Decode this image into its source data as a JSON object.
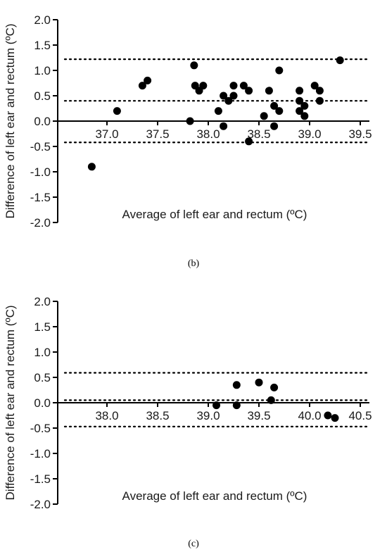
{
  "chart_data": [
    {
      "type": "scatter",
      "panel_label": "(b)",
      "xlabel": "Average of left ear and rectum (ºC)",
      "ylabel": "Difference of left ear and rectum (ºC)",
      "xlim": [
        36.5,
        39.5
      ],
      "ylim": [
        -2.0,
        2.0
      ],
      "x_ticks": [
        "37.0",
        "37.5",
        "38.0",
        "38.5",
        "39.0",
        "39.5"
      ],
      "y_ticks": [
        "2.0",
        "1.5",
        "1.0",
        "0.5",
        "0.0",
        "-0.5",
        "-1.0",
        "-1.5",
        "-2.0"
      ],
      "reference_lines": {
        "upper_loa": 1.22,
        "mean_bias": 0.4,
        "lower_loa": -0.42
      },
      "points": [
        {
          "x": 36.85,
          "y": -0.9
        },
        {
          "x": 37.1,
          "y": 0.2
        },
        {
          "x": 37.35,
          "y": 0.7
        },
        {
          "x": 37.4,
          "y": 0.8
        },
        {
          "x": 37.82,
          "y": 0.0
        },
        {
          "x": 37.86,
          "y": 1.1
        },
        {
          "x": 37.87,
          "y": 0.7
        },
        {
          "x": 37.91,
          "y": 0.6
        },
        {
          "x": 37.95,
          "y": 0.7
        },
        {
          "x": 38.1,
          "y": 0.2
        },
        {
          "x": 38.15,
          "y": 0.5
        },
        {
          "x": 38.15,
          "y": -0.1
        },
        {
          "x": 38.2,
          "y": 0.4
        },
        {
          "x": 38.25,
          "y": 0.7
        },
        {
          "x": 38.25,
          "y": 0.5
        },
        {
          "x": 38.35,
          "y": 0.7
        },
        {
          "x": 38.4,
          "y": 0.6
        },
        {
          "x": 38.4,
          "y": -0.4
        },
        {
          "x": 38.55,
          "y": 0.1
        },
        {
          "x": 38.6,
          "y": 0.6
        },
        {
          "x": 38.65,
          "y": 0.3
        },
        {
          "x": 38.65,
          "y": -0.1
        },
        {
          "x": 38.7,
          "y": 1.0
        },
        {
          "x": 38.7,
          "y": 0.2
        },
        {
          "x": 38.9,
          "y": 0.6
        },
        {
          "x": 38.9,
          "y": 0.4
        },
        {
          "x": 38.9,
          "y": 0.2
        },
        {
          "x": 38.95,
          "y": 0.3
        },
        {
          "x": 38.95,
          "y": 0.1
        },
        {
          "x": 39.05,
          "y": 0.7
        },
        {
          "x": 39.1,
          "y": 0.6
        },
        {
          "x": 39.1,
          "y": 0.4
        },
        {
          "x": 39.3,
          "y": 1.2
        }
      ]
    },
    {
      "type": "scatter",
      "panel_label": "(c)",
      "xlabel": "Average of left ear and rectum (ºC)",
      "ylabel": "Difference of left ear and rectum (ºC)",
      "xlim": [
        37.5,
        40.5
      ],
      "ylim": [
        -2.0,
        2.0
      ],
      "x_ticks": [
        "38.0",
        "38.5",
        "39.0",
        "39.5",
        "40.0",
        "40.5"
      ],
      "y_ticks": [
        "2.0",
        "1.5",
        "1.0",
        "0.5",
        "0.0",
        "-0.5",
        "-1.0",
        "-1.5",
        "-2.0"
      ],
      "reference_lines": {
        "upper_loa": 0.59,
        "mean_bias": 0.05,
        "lower_loa": -0.47
      },
      "points": [
        {
          "x": 39.08,
          "y": -0.05
        },
        {
          "x": 39.28,
          "y": 0.35
        },
        {
          "x": 39.28,
          "y": -0.05
        },
        {
          "x": 39.5,
          "y": 0.4
        },
        {
          "x": 39.62,
          "y": 0.05
        },
        {
          "x": 39.65,
          "y": 0.3
        },
        {
          "x": 40.18,
          "y": -0.25
        },
        {
          "x": 40.25,
          "y": -0.3
        }
      ]
    }
  ]
}
